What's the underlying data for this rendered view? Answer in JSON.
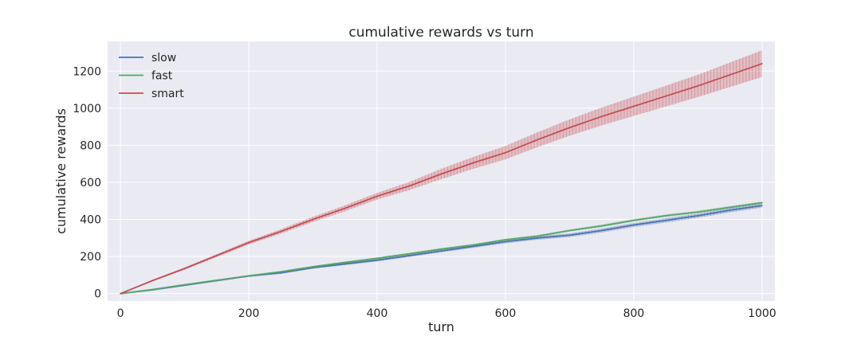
{
  "chart_data": {
    "type": "line",
    "title": "cumulative rewards vs turn",
    "xlabel": "turn",
    "ylabel": "cumulative rewards",
    "xlim": [
      -20,
      1020
    ],
    "ylim": [
      -40,
      1360
    ],
    "xticks": [
      0,
      200,
      400,
      600,
      800,
      1000
    ],
    "yticks": [
      0,
      200,
      400,
      600,
      800,
      1000,
      1200
    ],
    "grid": true,
    "legend_position": "top-left",
    "x": [
      0,
      50,
      100,
      150,
      200,
      250,
      300,
      350,
      400,
      450,
      500,
      550,
      600,
      650,
      700,
      750,
      800,
      850,
      900,
      950,
      1000
    ],
    "series": [
      {
        "name": "slow",
        "color": "#4c72b0",
        "values": [
          0,
          20,
          45,
          70,
          95,
          112,
          140,
          160,
          180,
          205,
          230,
          255,
          280,
          300,
          315,
          340,
          370,
          395,
          420,
          450,
          475
        ],
        "error": [
          0,
          3,
          4,
          5,
          5,
          6,
          6,
          7,
          7,
          8,
          8,
          9,
          9,
          10,
          10,
          11,
          11,
          12,
          12,
          12,
          12
        ]
      },
      {
        "name": "fast",
        "color": "#55a868",
        "values": [
          0,
          22,
          48,
          72,
          96,
          118,
          145,
          168,
          190,
          215,
          240,
          262,
          290,
          310,
          340,
          365,
          395,
          420,
          440,
          465,
          490
        ],
        "error": [
          0,
          2,
          3,
          3,
          4,
          4,
          4,
          5,
          5,
          5,
          5,
          6,
          6,
          6,
          6,
          7,
          7,
          7,
          7,
          7,
          7
        ]
      },
      {
        "name": "smart",
        "color": "#c44e52",
        "values": [
          0,
          70,
          135,
          205,
          275,
          335,
          400,
          460,
          525,
          580,
          645,
          705,
          760,
          830,
          895,
          955,
          1010,
          1065,
          1120,
          1180,
          1240
        ],
        "error": [
          0,
          4,
          6,
          8,
          10,
          12,
          14,
          16,
          18,
          22,
          28,
          32,
          36,
          40,
          44,
          48,
          52,
          56,
          60,
          66,
          72
        ]
      }
    ]
  }
}
